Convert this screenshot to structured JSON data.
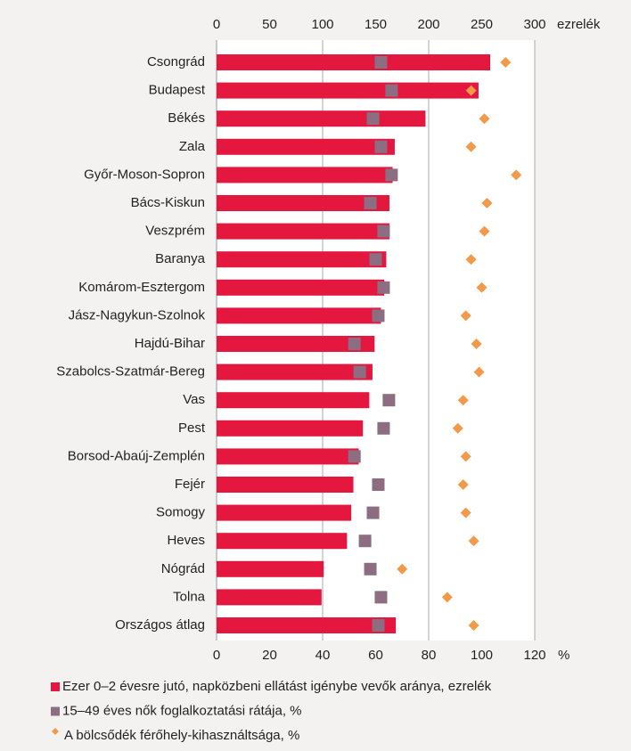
{
  "chart_data": {
    "type": "bar",
    "categories": [
      "Csongrád",
      "Budapest",
      "Békés",
      "Zala",
      "Győr-Moson-Sopron",
      "Bács-Kiskun",
      "Veszprém",
      "Baranya",
      "Komárom-Esztergom",
      "Jász-Nagykun-Szolnok",
      "Hajdú-Bihar",
      "Szabolcs-Szatmár-Bereg",
      "Vas",
      "Pest",
      "Borsod-Abaúj-Zemplén",
      "Fejér",
      "Somogy",
      "Heves",
      "Nógrád",
      "Tolna",
      "Országos átlag"
    ],
    "series": [
      {
        "name": "Ezer 0–2 évesre jutó, napközbeni ellátást igénybe vevők aránya, ezrelék",
        "color": "#e4173f",
        "marker": "bar",
        "axis": "x2",
        "values": [
          258,
          247,
          197,
          168,
          166,
          163,
          163,
          160,
          158,
          155,
          149,
          147,
          144,
          138,
          134,
          129,
          127,
          123,
          101,
          99,
          169
        ]
      },
      {
        "name": "15–49 éves nők foglalkoztatási rátája, %",
        "color": "#8c6d82",
        "marker": "square",
        "values": [
          62,
          66,
          59,
          62,
          66,
          58,
          63,
          60,
          63,
          61,
          52,
          54,
          65,
          63,
          52,
          61,
          59,
          56,
          58,
          62,
          61
        ]
      },
      {
        "name": "A bölcsődék férőhely-kihasználtsága, %",
        "color": "#f39a4a",
        "marker": "diamond",
        "values": [
          109,
          96,
          101,
          96,
          113,
          102,
          101,
          96,
          100,
          94,
          98,
          99,
          93,
          91,
          94,
          93,
          94,
          97,
          70,
          87,
          97
        ]
      }
    ],
    "x2label": "ezrelék",
    "x2lim": [
      0,
      300
    ],
    "x2ticks": [
      0,
      50,
      100,
      150,
      200,
      250,
      300
    ],
    "xlabel": "%",
    "xlim": [
      0,
      120
    ],
    "xticks": [
      0,
      20,
      40,
      60,
      80,
      100,
      120
    ],
    "grid": true
  }
}
